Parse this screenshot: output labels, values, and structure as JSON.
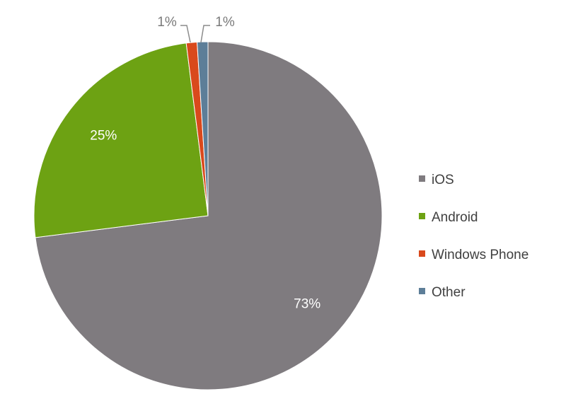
{
  "chart_data": {
    "type": "pie",
    "series": [
      {
        "name": "iOS",
        "value": 73,
        "label": "73%",
        "color": "#7f7b7f"
      },
      {
        "name": "Android",
        "value": 25,
        "label": "25%",
        "color": "#6da213"
      },
      {
        "name": "Windows Phone",
        "value": 1,
        "label": "1%",
        "color": "#d9491c"
      },
      {
        "name": "Other",
        "value": 1,
        "label": "1%",
        "color": "#5d7e98"
      }
    ],
    "legend_position": "right"
  }
}
